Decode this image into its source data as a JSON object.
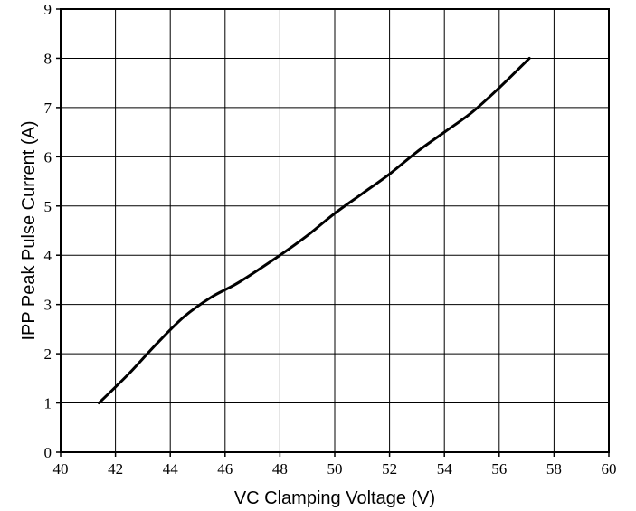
{
  "chart_data": {
    "type": "line",
    "title": "",
    "xlabel": "VC Clamping Voltage (V)",
    "ylabel": "IPP Peak Pulse Current (A)",
    "xlim": [
      40,
      60
    ],
    "ylim": [
      0,
      9
    ],
    "x_ticks": [
      40,
      42,
      44,
      46,
      48,
      50,
      52,
      54,
      56,
      58,
      60
    ],
    "y_ticks": [
      0,
      1,
      2,
      3,
      4,
      5,
      6,
      7,
      8,
      9
    ],
    "grid": true,
    "legend": "none",
    "series": [
      {
        "color": "#000000",
        "points": [
          [
            41.4,
            1.0
          ],
          [
            42.5,
            1.6
          ],
          [
            43.5,
            2.2
          ],
          [
            44.5,
            2.75
          ],
          [
            45.5,
            3.15
          ],
          [
            46.5,
            3.45
          ],
          [
            48.0,
            4.0
          ],
          [
            49.0,
            4.4
          ],
          [
            50.0,
            4.85
          ],
          [
            51.0,
            5.25
          ],
          [
            52.0,
            5.65
          ],
          [
            53.0,
            6.1
          ],
          [
            54.0,
            6.5
          ],
          [
            55.0,
            6.9
          ],
          [
            56.0,
            7.4
          ],
          [
            57.1,
            8.0
          ]
        ]
      }
    ]
  }
}
